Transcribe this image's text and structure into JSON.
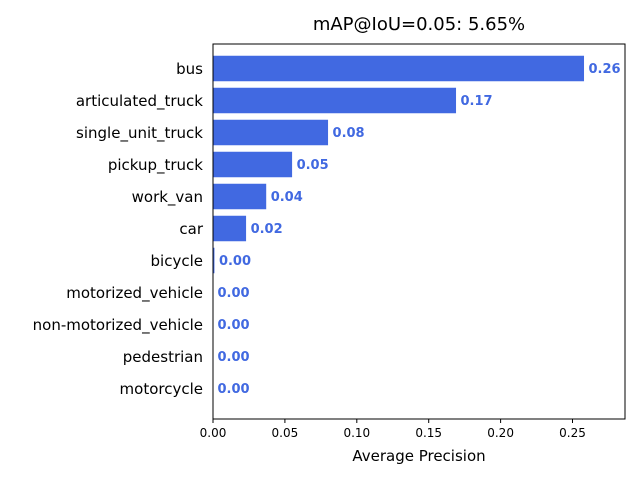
{
  "chart_data": {
    "type": "bar",
    "orientation": "horizontal",
    "title": "mAP@IoU=0.05: 5.65%",
    "xlabel": "Average Precision",
    "ylabel": "",
    "xlim": [
      0,
      0.2865
    ],
    "xticks": [
      0.0,
      0.05,
      0.1,
      0.15,
      0.2,
      0.25
    ],
    "xtick_labels": [
      "0.00",
      "0.05",
      "0.10",
      "0.15",
      "0.20",
      "0.25"
    ],
    "grid": false,
    "bar_color": "#4169e1",
    "label_color": "#4169e1",
    "categories": [
      "bus",
      "articulated_truck",
      "single_unit_truck",
      "pickup_truck",
      "work_van",
      "car",
      "bicycle",
      "motorized_vehicle",
      "non-motorized_vehicle",
      "pedestrian",
      "motorcycle"
    ],
    "values": [
      0.258,
      0.169,
      0.08,
      0.055,
      0.037,
      0.023,
      0.001,
      0.0,
      0.0,
      0.0,
      0.0
    ],
    "value_labels": [
      "0.26",
      "0.17",
      "0.08",
      "0.05",
      "0.04",
      "0.02",
      "0.00",
      "0.00",
      "0.00",
      "0.00",
      "0.00"
    ]
  }
}
